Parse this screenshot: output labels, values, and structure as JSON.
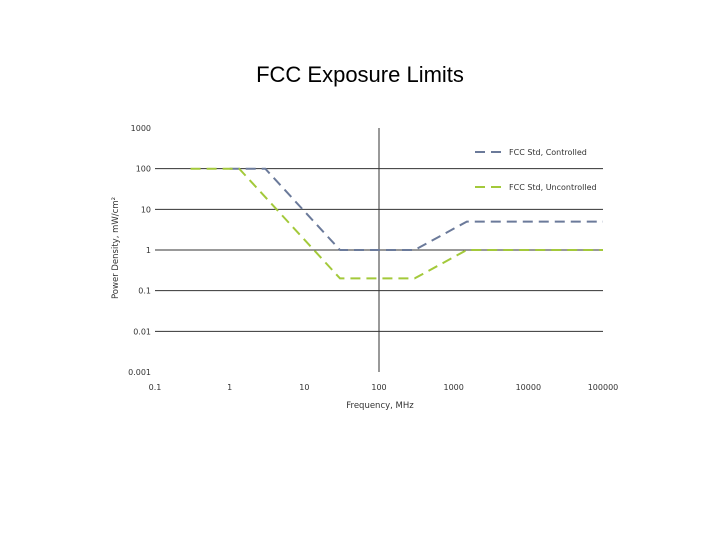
{
  "title": "FCC Exposure Limits",
  "chart_data": {
    "type": "line",
    "xscale": "log",
    "yscale": "log",
    "xlim": [
      0.1,
      100000
    ],
    "ylim": [
      0.001,
      1000
    ],
    "xticks": [
      "0.1",
      "1",
      "10",
      "100",
      "1000",
      "10000",
      "100000"
    ],
    "yticks": [
      "1000",
      "100",
      "10",
      "1",
      "0.1",
      "0.01",
      "0.001"
    ],
    "xlabel": "Frequency, MHz",
    "ylabel": "Power Density, mW/cm²",
    "grid": "horizontal",
    "legend_position": "top-right",
    "series": [
      {
        "name": "FCC Std, Controlled",
        "color": "#6b7a9a",
        "dash": "dashed",
        "x": [
          1,
          3,
          30,
          300,
          1500,
          100000
        ],
        "y": [
          100,
          100,
          1,
          1,
          5,
          5
        ]
      },
      {
        "name": "FCC Std, Uncontrolled",
        "color": "#a3c93a",
        "dash": "dashed",
        "x": [
          0.3,
          1.34,
          30,
          300,
          1500,
          100000
        ],
        "y": [
          100,
          100,
          0.2,
          0.2,
          1,
          1
        ]
      }
    ]
  }
}
